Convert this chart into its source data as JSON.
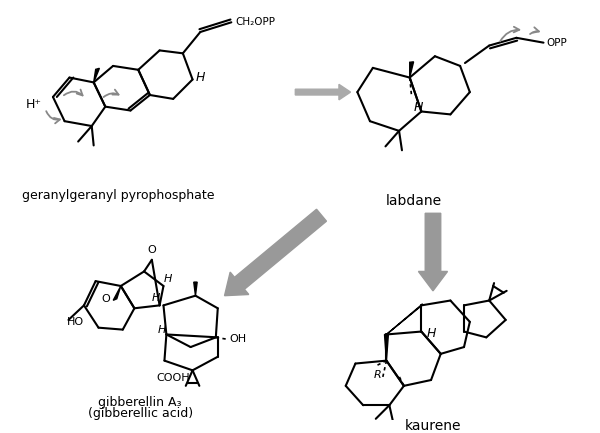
{
  "bg_color": "#ffffff",
  "arrow_color": "#888888",
  "bond_color": "#000000",
  "label_geranyl": "geranylgeranyl pyrophosphate",
  "label_labdane": "labdane",
  "label_gibberellin": "gibberellin A₃",
  "label_gibberellin2": "(gibberellic acid)",
  "label_kaurene": "kaurene",
  "label_ch2opp": "CH₂OPP",
  "label_opp": "OPP",
  "label_H": "H",
  "label_Hplus": "H⁺",
  "label_HO": "HO",
  "label_OH": "OH",
  "label_COOH": "COOH",
  "label_O": "O",
  "label_R": "R",
  "figsize": [
    6.0,
    4.33
  ],
  "dpi": 100
}
